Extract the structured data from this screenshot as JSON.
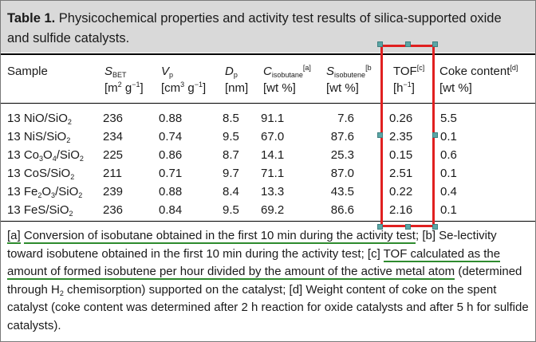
{
  "caption": {
    "label": "Table 1.",
    "text": " Physicochemical properties and activity test results of silica-supported oxide and sulfide catalysts."
  },
  "headers": {
    "sample": "Sample",
    "sbet": {
      "sym": "S",
      "sub": "BET",
      "unit_pre": "[m",
      "unit_sup1": "2",
      "unit_mid": " g",
      "unit_sup2": "−1",
      "unit_post": "]"
    },
    "vp": {
      "sym": "V",
      "sub": "p",
      "unit_pre": "[cm",
      "unit_sup1": "3",
      "unit_mid": " g",
      "unit_sup2": "−1",
      "unit_post": "]"
    },
    "dp": {
      "sym": "D",
      "sub": "p",
      "unit": "[nm]"
    },
    "cisobutane": {
      "sym": "C",
      "sub": "isobutane",
      "note": "[a]",
      "unit": "[wt %]"
    },
    "sisobutene": {
      "sym": "S",
      "sub": "isobutene",
      "note": "[b",
      "unit": "[wt %]"
    },
    "tof": {
      "label": "TOF",
      "note": "[c]",
      "unit_pre": "[h",
      "unit_sup": "−1",
      "unit_post": "]"
    },
    "coke": {
      "label": "Coke content",
      "note": "[d]",
      "unit": "[wt %]"
    }
  },
  "rows": [
    {
      "pre": "13 NiO/SiO",
      "sub": "2",
      "sbet": "236",
      "vp": "0.88",
      "dp": "8.5",
      "ciso": "91.1",
      "siso": "7.6",
      "tof": "0.26",
      "coke": "5.5"
    },
    {
      "pre": "13 NiS/SiO",
      "sub": "2",
      "sbet": "234",
      "vp": "0.74",
      "dp": "9.5",
      "ciso": "67.0",
      "siso": "87.6",
      "tof": "2.35",
      "coke": "0.1"
    },
    {
      "pre": "13 Co",
      "sub1": "3",
      "mid": "O",
      "sub2": "4",
      "post": "/SiO",
      "sub": "2",
      "sbet": "225",
      "vp": "0.86",
      "dp": "8.7",
      "ciso": "14.1",
      "siso": "25.3",
      "tof": "0.15",
      "coke": "0.6"
    },
    {
      "pre": "13 CoS/SiO",
      "sub": "2",
      "sbet": "211",
      "vp": "0.71",
      "dp": "9.7",
      "ciso": "71.1",
      "siso": "87.0",
      "tof": "2.51",
      "coke": "0.1"
    },
    {
      "pre": "13 Fe",
      "sub1": "2",
      "mid": "O",
      "sub2": "3",
      "post": "/SiO",
      "sub": "2",
      "sbet": "239",
      "vp": "0.88",
      "dp": "8.4",
      "ciso": "13.3",
      "siso": "43.5",
      "tof": "0.22",
      "coke": "0.4"
    },
    {
      "pre": "13 FeS/SiO",
      "sub": "2",
      "sbet": "236",
      "vp": "0.84",
      "dp": "9.5",
      "ciso": "69.2",
      "siso": "86.6",
      "tof": "2.16",
      "coke": "0.1"
    }
  ],
  "footnotes": {
    "a_label": "[a]",
    "a_text": "Conversion of isobutane obtained in the first 10 min during the activity test",
    "a_sep": "; [b] Se-lectivity toward isobutene obtained in the first 10 min during the activity test; [c] ",
    "c_text1": "TOF calculated as the amount of formed isobutene per hour divided by the amount of the active metal atom",
    "c_rest_pre": " (determined through H",
    "c_rest_sub": "2",
    "c_rest_post": " chemisorption) supported on the catalyst; [d] Weight content of coke on the spent catalyst (coke content was determined after 2 h reaction for oxide catalysts and after 5 h for sulfide catalysts)."
  },
  "colors": {
    "caption_bg": "#d9d9d9",
    "selection": "#e02020",
    "handle": "#5aa6a6",
    "underline": "#2e8b2e"
  }
}
